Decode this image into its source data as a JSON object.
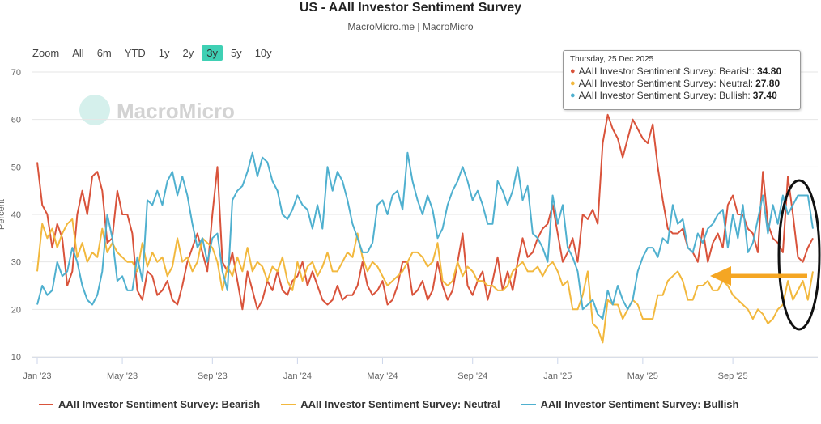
{
  "title": "US - AAII Investor Sentiment Survey",
  "subtitle": "MacroMicro.me | MacroMicro",
  "watermark": "MacroMicro",
  "range": {
    "label": "Zoom",
    "buttons": [
      "All",
      "6m",
      "YTD",
      "1y",
      "2y",
      "3y",
      "5y",
      "10y"
    ],
    "active": "3y"
  },
  "colors": {
    "bearish": "#d9533b",
    "neutral": "#f2b83d",
    "bullish": "#4fb0cf",
    "annotation": "#f5a623",
    "active_btn": "#3fd0b4"
  },
  "tooltip": {
    "date": "Thursday, 25 Dec 2025",
    "rows": [
      {
        "label": "AAII Investor Sentiment Survey: Bearish:",
        "value": "34.80",
        "color": "#d9533b"
      },
      {
        "label": "AAII Investor Sentiment Survey: Neutral:",
        "value": "27.80",
        "color": "#f2b83d"
      },
      {
        "label": "AAII Investor Sentiment Survey: Bullish:",
        "value": "37.40",
        "color": "#4fb0cf"
      }
    ]
  },
  "chart_data": {
    "type": "line",
    "ylabel": "Percent",
    "ylim": [
      10,
      70
    ],
    "yticks": [
      10,
      20,
      30,
      40,
      50,
      60,
      70
    ],
    "x_tick_labels": [
      "Jan '23",
      "May '23",
      "Sep '23",
      "Jan '24",
      "May '24",
      "Sep '24",
      "Jan '25",
      "May '25",
      "Sep '25"
    ],
    "x_tick_weeks": [
      0,
      17,
      35,
      52,
      69,
      87,
      104,
      121,
      139
    ],
    "legend": "bottom",
    "series": [
      {
        "name": "AAII Investor Sentiment Survey: Bearish",
        "key": "bearish",
        "values": [
          51,
          42,
          40,
          33,
          38,
          35,
          25,
          28,
          40,
          45,
          40,
          48,
          49,
          45,
          34,
          35,
          45,
          40,
          40,
          36,
          24,
          22,
          28,
          27,
          23,
          24,
          26,
          22,
          21,
          25,
          30,
          33,
          36,
          32,
          28,
          40,
          50,
          30,
          28,
          32,
          26,
          20,
          28,
          24,
          20,
          22,
          26,
          24,
          28,
          24,
          23,
          26,
          27,
          30,
          25,
          28,
          25,
          22,
          21,
          22,
          25,
          22,
          23,
          23,
          25,
          30,
          25,
          23,
          24,
          26,
          21,
          22,
          25,
          30,
          30,
          23,
          24,
          26,
          22,
          24,
          30,
          25,
          22,
          24,
          30,
          36,
          25,
          23,
          26,
          28,
          22,
          26,
          31,
          24,
          28,
          24,
          30,
          35,
          31,
          32,
          35,
          37,
          38,
          42,
          36,
          30,
          32,
          35,
          30,
          40,
          39,
          41,
          38,
          55,
          61,
          58,
          56,
          52,
          56,
          60,
          58,
          56,
          55,
          59,
          50,
          43,
          37,
          36,
          36,
          37,
          33,
          32,
          30,
          37,
          30,
          34,
          36,
          33,
          42,
          44,
          40,
          40,
          37,
          36,
          32,
          49,
          38,
          35,
          34,
          32,
          48,
          40,
          31,
          30,
          33,
          35
        ]
      },
      {
        "name": "AAII Investor Sentiment Survey: Neutral",
        "key": "neutral",
        "values": [
          28,
          38,
          35,
          37,
          33,
          36,
          38,
          39,
          31,
          34,
          30,
          32,
          31,
          37,
          32,
          34,
          32,
          31,
          30,
          30,
          28,
          34,
          29,
          32,
          30,
          31,
          27,
          29,
          35,
          30,
          31,
          28,
          30,
          35,
          34,
          33,
          30,
          24,
          29,
          27,
          31,
          28,
          33,
          28,
          30,
          29,
          26,
          29,
          28,
          31,
          26,
          24,
          30,
          26,
          29,
          30,
          27,
          29,
          32,
          28,
          28,
          30,
          32,
          31,
          36,
          31,
          28,
          30,
          29,
          27,
          25,
          26,
          27,
          28,
          30,
          32,
          32,
          31,
          29,
          30,
          34,
          26,
          25,
          26,
          30,
          27,
          29,
          28,
          26,
          26,
          25,
          25,
          24,
          24,
          25,
          28,
          29,
          30,
          28,
          28,
          29,
          27,
          29,
          30,
          28,
          25,
          26,
          20,
          20,
          23,
          28,
          17,
          16,
          13,
          22,
          21,
          21,
          18,
          20,
          22,
          21,
          18,
          18,
          18,
          23,
          23,
          26,
          27,
          28,
          26,
          22,
          22,
          25,
          25,
          26,
          24,
          24,
          26,
          25,
          23,
          22,
          21,
          20,
          18,
          20,
          19,
          17,
          18,
          20,
          21,
          26,
          22,
          24,
          26,
          22,
          28
        ]
      },
      {
        "name": "AAII Investor Sentiment Survey: Bullish",
        "key": "bullish",
        "values": [
          21,
          25,
          23,
          24,
          30,
          27,
          28,
          33,
          30,
          25,
          22,
          21,
          23,
          28,
          40,
          35,
          26,
          27,
          24,
          24,
          31,
          26,
          43,
          42,
          45,
          42,
          47,
          49,
          44,
          48,
          44,
          38,
          33,
          35,
          30,
          35,
          36,
          28,
          24,
          43,
          45,
          46,
          49,
          53,
          48,
          52,
          51,
          47,
          45,
          40,
          39,
          41,
          44,
          42,
          41,
          37,
          42,
          37,
          50,
          45,
          49,
          47,
          43,
          38,
          35,
          32,
          32,
          34,
          42,
          43,
          40,
          44,
          45,
          41,
          53,
          47,
          43,
          40,
          44,
          41,
          35,
          37,
          42,
          45,
          47,
          50,
          47,
          43,
          45,
          42,
          38,
          38,
          47,
          45,
          42,
          45,
          50,
          43,
          46,
          36,
          35,
          33,
          30,
          44,
          38,
          42,
          33,
          31,
          28,
          20,
          21,
          22,
          19,
          18,
          24,
          21,
          25,
          22,
          20,
          22,
          28,
          31,
          33,
          33,
          31,
          35,
          34,
          42,
          38,
          39,
          33,
          32,
          36,
          34,
          37,
          38,
          40,
          41,
          33,
          40,
          35,
          42,
          32,
          34,
          39,
          44,
          36,
          42,
          38,
          44,
          40,
          42,
          44,
          44,
          44,
          37
        ]
      }
    ]
  }
}
